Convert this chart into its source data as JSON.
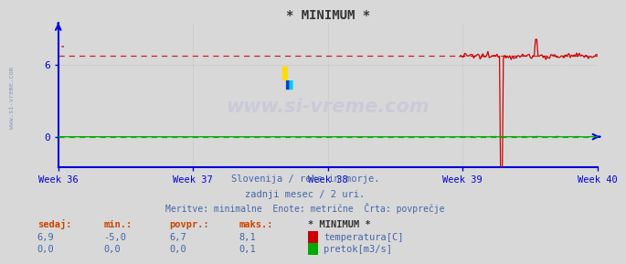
{
  "title": "* MINIMUM *",
  "bg_color": "#d8d8d8",
  "plot_bg_color": "#d8d8d8",
  "axis_color": "#0000dd",
  "grid_color": "#bbbbbb",
  "text_color": "#4466aa",
  "week_labels": [
    "Week 36",
    "Week 37",
    "Week 38",
    "Week 39",
    "Week 40"
  ],
  "xlim": [
    0,
    672
  ],
  "ylim": [
    -2.5,
    9.5
  ],
  "yticks": [
    0,
    6
  ],
  "temp_avg": 6.7,
  "flow_avg": 0.0,
  "temp_color": "#cc0000",
  "flow_color": "#00aa00",
  "subtitle1": "Slovenija / reke in morje.",
  "subtitle2": "zadnji mesec / 2 uri.",
  "subtitle3": "Meritve: minimalne  Enote: metrične  Črta: povprečje",
  "table_header": [
    "sedaj:",
    "min.:",
    "povpr.:",
    "maks.:",
    "* MINIMUM *"
  ],
  "row1": [
    "6,9",
    "-5,0",
    "6,7",
    "8,1"
  ],
  "row2": [
    "0,0",
    "0,0",
    "0,0",
    "0,1"
  ],
  "label1": "temperatura[C]",
  "label2": "pretok[m3/s]",
  "watermark": "www.si-vreme.com",
  "sidewatermark": "www.si-vreme.com",
  "week_positions": [
    0,
    168,
    336,
    504,
    672
  ],
  "logo_yellow": "#ffdd00",
  "logo_blue": "#0044cc",
  "logo_cyan": "#00ccff"
}
